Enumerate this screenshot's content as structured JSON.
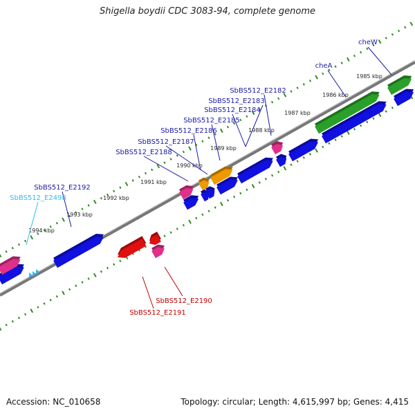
{
  "title": "Shigella boydii CDC 3083-94, complete genome",
  "footer": {
    "accession": "Accession: NC_010658",
    "topology": "Topology: circular; Length: 4,615,997 bp; Genes: 4,415"
  },
  "colors": {
    "background": "#ffffff",
    "backbone": "#777777",
    "tick": "#2f8a1f",
    "forward_label": "#1a1aa6",
    "reverse_label": "#c00000",
    "rna_label": "#33bbee",
    "cds_forward": "#1010e0",
    "cds_reverse": "#e01010",
    "pseudo": "#e0308a",
    "orange": "#ee9900",
    "green": "#2aa02a",
    "trna": "#33bbee"
  },
  "ticks": [
    {
      "label": "1985 kbp"
    },
    {
      "label": "1986 kbp"
    },
    {
      "label": "1987 kbp"
    },
    {
      "label": "1988 kbp"
    },
    {
      "label": "1989 kbp"
    },
    {
      "label": "1990 kbp"
    },
    {
      "label": "1991 kbp"
    },
    {
      "label": "1992 kbp"
    },
    {
      "label": "1993 kbp"
    },
    {
      "label": "1994 kbp"
    }
  ],
  "gene_labels": [
    {
      "text": "cheW",
      "strand": "forward"
    },
    {
      "text": "cheA",
      "strand": "forward"
    },
    {
      "text": "SbBS512_E2182",
      "strand": "forward"
    },
    {
      "text": "SbBS512_E2183",
      "strand": "forward"
    },
    {
      "text": "SbBS512_E2184",
      "strand": "forward"
    },
    {
      "text": "SbBS512_E2185",
      "strand": "forward"
    },
    {
      "text": "SbBS512_E2186",
      "strand": "forward"
    },
    {
      "text": "SbBS512_E2187",
      "strand": "forward"
    },
    {
      "text": "SbBS512_E2188",
      "strand": "forward"
    },
    {
      "text": "SbBS512_E2192",
      "strand": "forward"
    },
    {
      "text": "SbBS512_E2498",
      "strand": "rna"
    },
    {
      "text": "SbBS512_E2190",
      "strand": "reverse"
    },
    {
      "text": "SbBS512_E2191",
      "strand": "reverse"
    }
  ]
}
